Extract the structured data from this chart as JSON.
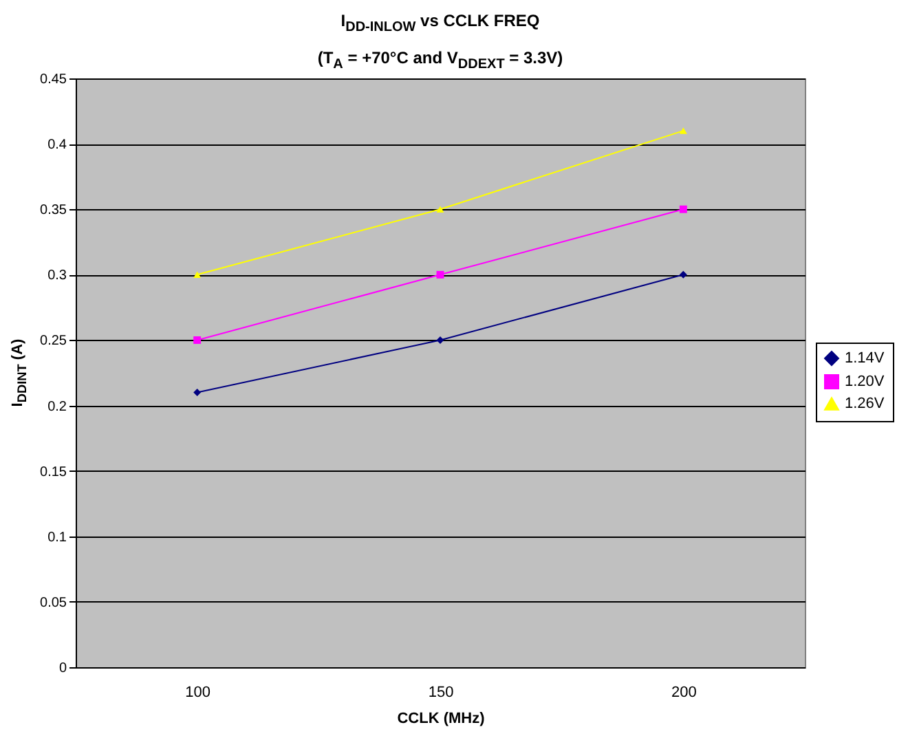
{
  "chart_data": {
    "type": "line",
    "title": "I$_{DD-INLOW}$ vs CCLK FREQ",
    "subtitle": "(T$_{A}$ = +70°C and V$_{DDEXT}$ = 3.3V)",
    "xlabel": "CCLK (MHz)",
    "ylabel": "I$_{DDINT}$ (A)",
    "categories": [
      "100",
      "150",
      "200"
    ],
    "series": [
      {
        "name": "1.14V",
        "color": "#000080",
        "marker": "diamond",
        "values": [
          0.21,
          0.25,
          0.3
        ]
      },
      {
        "name": "1.20V",
        "color": "#ff00ff",
        "marker": "square",
        "values": [
          0.25,
          0.3,
          0.35
        ]
      },
      {
        "name": "1.26V",
        "color": "#ffff00",
        "marker": "triangle",
        "values": [
          0.3,
          0.35,
          0.41
        ]
      }
    ],
    "ylim": [
      0,
      0.45
    ],
    "yticks": [
      0,
      0.05,
      0.1,
      0.15,
      0.2,
      0.25,
      0.3,
      0.35,
      0.4,
      0.45
    ],
    "grid": "y",
    "legend": "right"
  }
}
